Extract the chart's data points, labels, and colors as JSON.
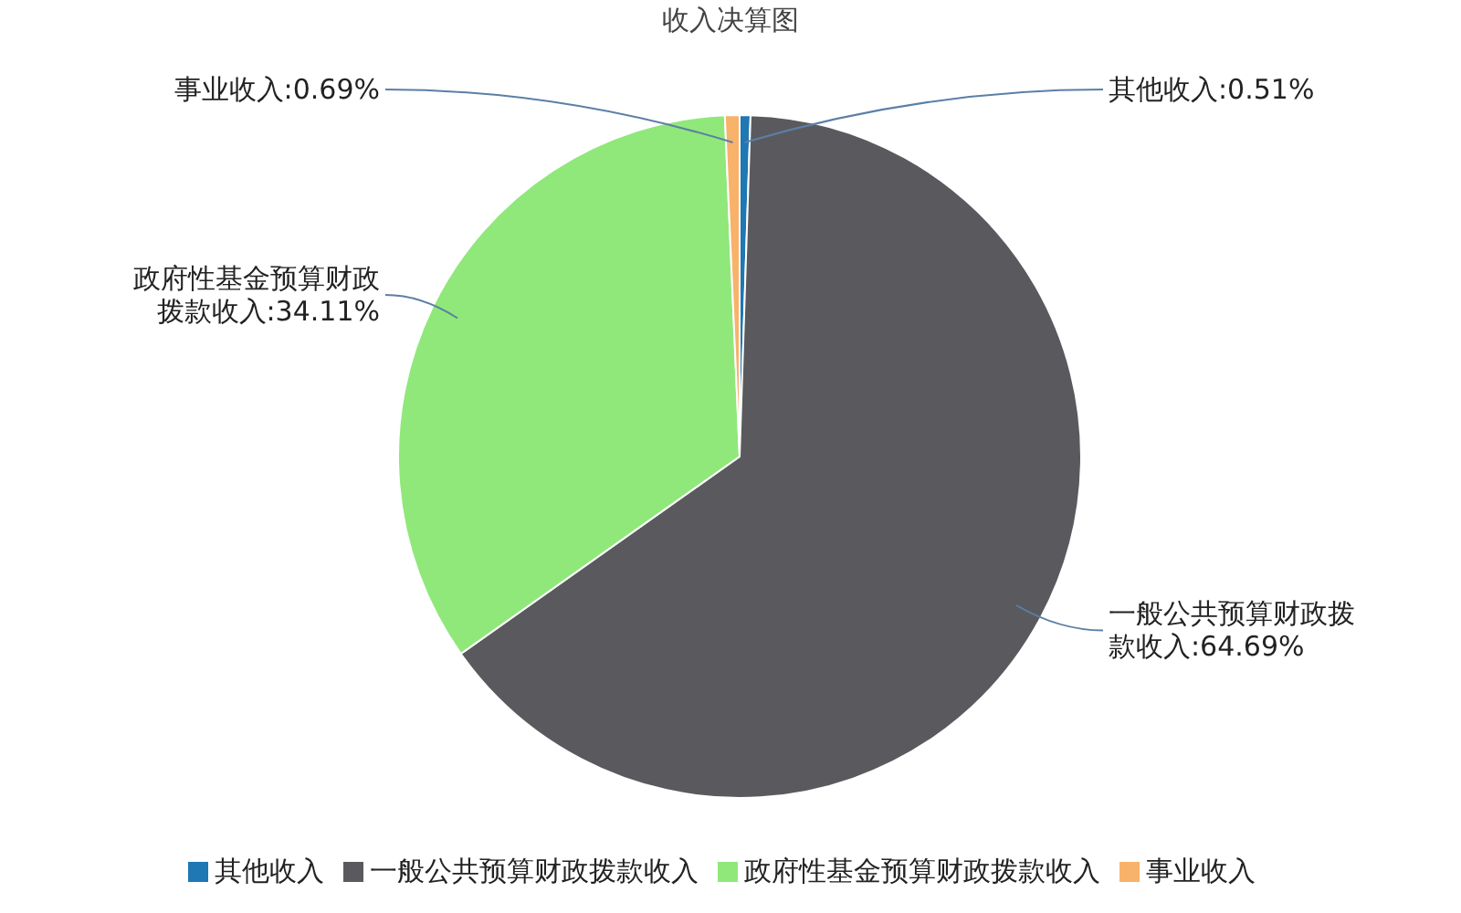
{
  "chart_data": {
    "type": "pie",
    "title": "收入决算图",
    "categories": [
      "其他收入",
      "一般公共预算财政拨款收入",
      "政府性基金预算财政拨款收入",
      "事业收入"
    ],
    "values": [
      0.51,
      64.69,
      34.11,
      0.69
    ],
    "colors": [
      "#1f77b4",
      "#5a5a5e",
      "#90e87a",
      "#f8b26a"
    ],
    "value_labels": [
      "其他收入:0.51%",
      "一般公共预算财政拨款收入:64.69%",
      "政府性基金预算财政拨款收入:34.11%",
      "事业收入:0.69%"
    ],
    "legend": "bottom"
  }
}
